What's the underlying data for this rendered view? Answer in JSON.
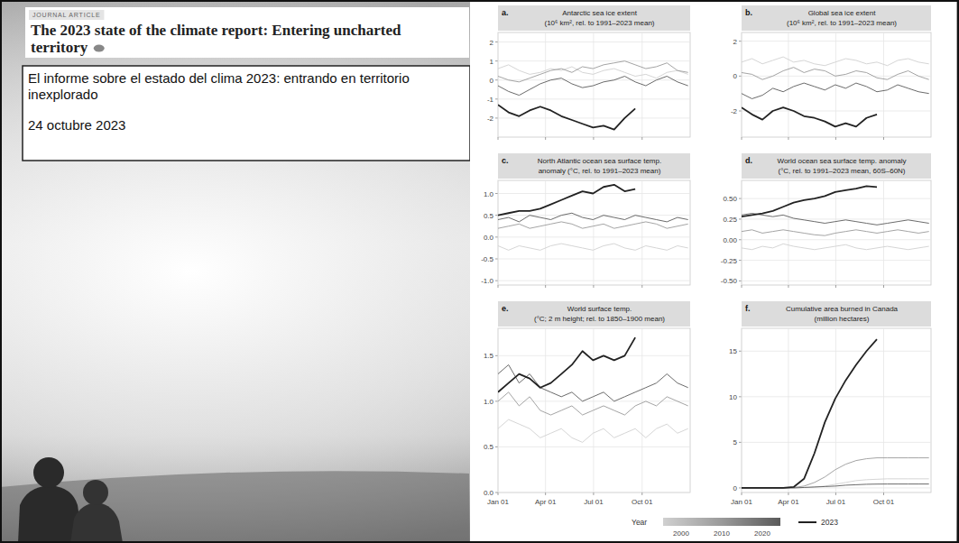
{
  "header": {
    "label": "JOURNAL ARTICLE",
    "title": "The 2023 state of the climate report: Entering uncharted territory"
  },
  "caption": {
    "title": "El informe sobre el estado del clima 2023: entrando en territorio inexplorado",
    "date": "24 octubre 2023"
  },
  "legend": {
    "title": "Year",
    "position": "bottom"
  },
  "chart_data": [
    {
      "type": "line",
      "label": "a.",
      "title": "Antarctic sea ice extent",
      "subtitle": "(10⁶ km², rel. to 1991–2023 mean)",
      "x": [
        1,
        21,
        41,
        61,
        81,
        101,
        121,
        141,
        161,
        181,
        201,
        221,
        241,
        261,
        281,
        301,
        321,
        341,
        361
      ],
      "xlim": [
        1,
        365
      ],
      "xticks": [
        {
          "value": 1,
          "label": "Jan 01"
        },
        {
          "value": 91,
          "label": "Apr 01"
        },
        {
          "value": 182,
          "label": "Jul 01"
        },
        {
          "value": 274,
          "label": "Oct 01"
        }
      ],
      "ylim": [
        -3,
        2.5
      ],
      "yticks": [
        -2,
        -1,
        0,
        1,
        2
      ],
      "grid": true,
      "tick_labels": "y",
      "series": [
        {
          "name": "2000",
          "color": "#d0d0d0",
          "values": [
            0.6,
            0.8,
            0.5,
            0.3,
            0.4,
            0.6,
            0.5,
            0.7,
            0.4,
            0.3,
            0.5,
            0.6,
            0.4,
            0.2,
            0.3,
            0.1,
            0.4,
            0.5,
            0.3
          ]
        },
        {
          "name": "2010",
          "color": "#9a9a9a",
          "values": [
            0.2,
            0.0,
            -0.1,
            0.1,
            0.3,
            0.5,
            0.6,
            0.4,
            0.7,
            0.6,
            0.8,
            0.9,
            1.0,
            0.8,
            0.6,
            0.7,
            0.9,
            0.5,
            0.4
          ]
        },
        {
          "name": "2020",
          "color": "#5a5a5a",
          "values": [
            -0.3,
            -0.6,
            -0.8,
            -0.5,
            -0.2,
            0.0,
            0.1,
            -0.2,
            -0.4,
            -0.3,
            -0.1,
            0.0,
            0.2,
            -0.1,
            -0.3,
            0.0,
            0.2,
            -0.1,
            -0.3
          ]
        },
        {
          "name": "2023",
          "color": "#222222",
          "values": [
            -1.3,
            -1.7,
            -1.9,
            -1.6,
            -1.4,
            -1.6,
            -1.9,
            -2.1,
            -2.3,
            -2.5,
            -2.4,
            -2.6,
            -2.0,
            -1.5,
            null,
            null,
            null,
            null,
            null
          ]
        }
      ]
    },
    {
      "type": "line",
      "label": "b.",
      "title": "Global sea ice extent",
      "subtitle": "(10⁶ km², rel. to 1991–2023 mean)",
      "x": [
        1,
        21,
        41,
        61,
        81,
        101,
        121,
        141,
        161,
        181,
        201,
        221,
        241,
        261,
        281,
        301,
        321,
        341,
        361
      ],
      "xlim": [
        1,
        365
      ],
      "xticks": [
        {
          "value": 1,
          "label": "Jan 01"
        },
        {
          "value": 91,
          "label": "Apr 01"
        },
        {
          "value": 182,
          "label": "Jul 01"
        },
        {
          "value": 274,
          "label": "Oct 01"
        }
      ],
      "ylim": [
        -3.5,
        2.5
      ],
      "yticks": [
        -2,
        0,
        2
      ],
      "grid": true,
      "tick_labels": "y",
      "series": [
        {
          "name": "2000",
          "color": "#d0d0d0",
          "values": [
            0.8,
            1.0,
            0.7,
            0.9,
            1.1,
            0.8,
            0.9,
            0.7,
            0.6,
            0.8,
            1.0,
            0.9,
            0.7,
            0.8,
            0.6,
            0.9,
            1.0,
            0.8,
            0.7
          ]
        },
        {
          "name": "2010",
          "color": "#9a9a9a",
          "values": [
            0.2,
            0.1,
            -0.2,
            0.0,
            0.3,
            0.5,
            0.2,
            0.4,
            0.3,
            0.0,
            0.1,
            0.3,
            0.2,
            -0.1,
            -0.2,
            0.1,
            0.3,
            0.0,
            -0.2
          ]
        },
        {
          "name": "2020",
          "color": "#5a5a5a",
          "values": [
            -1.0,
            -1.3,
            -1.1,
            -0.7,
            -0.9,
            -0.6,
            -0.4,
            -0.6,
            -0.8,
            -0.5,
            -0.7,
            -0.4,
            -0.6,
            -0.9,
            -0.8,
            -0.5,
            -0.7,
            -0.9,
            -1.0
          ]
        },
        {
          "name": "2023",
          "color": "#222222",
          "values": [
            -1.8,
            -2.2,
            -2.5,
            -2.0,
            -1.8,
            -2.0,
            -2.3,
            -2.4,
            -2.6,
            -2.9,
            -2.7,
            -2.9,
            -2.4,
            -2.2,
            null,
            null,
            null,
            null,
            null
          ]
        }
      ]
    },
    {
      "type": "line",
      "label": "c.",
      "title": "North Atlantic ocean sea surface temp.",
      "subtitle": "anomaly (°C, rel. to 1991–2023 mean)",
      "x": [
        1,
        21,
        41,
        61,
        81,
        101,
        121,
        141,
        161,
        181,
        201,
        221,
        241,
        261,
        281,
        301,
        321,
        341,
        361
      ],
      "xlim": [
        1,
        365
      ],
      "xticks": [
        {
          "value": 1,
          "label": "Jan 01"
        },
        {
          "value": 91,
          "label": "Apr 01"
        },
        {
          "value": 182,
          "label": "Jul 01"
        },
        {
          "value": 274,
          "label": "Oct 01"
        }
      ],
      "ylim": [
        -1.1,
        1.3
      ],
      "yticks": [
        {
          "value": -1,
          "label": "-1.0"
        },
        {
          "value": -0.5,
          "label": "-0.5"
        },
        {
          "value": 0,
          "label": "0.0"
        },
        {
          "value": 0.5,
          "label": "0.5"
        },
        {
          "value": 1,
          "label": "1.0"
        }
      ],
      "grid": true,
      "tick_labels": "y",
      "series": [
        {
          "name": "2000",
          "color": "#d0d0d0",
          "values": [
            -0.2,
            -0.3,
            -0.2,
            -0.25,
            -0.3,
            -0.2,
            -0.15,
            -0.2,
            -0.25,
            -0.3,
            -0.2,
            -0.15,
            -0.25,
            -0.3,
            -0.2,
            -0.25,
            -0.3,
            -0.2,
            -0.25
          ]
        },
        {
          "name": "2010",
          "color": "#9a9a9a",
          "values": [
            0.2,
            0.25,
            0.3,
            0.2,
            0.25,
            0.3,
            0.35,
            0.3,
            0.2,
            0.25,
            0.3,
            0.2,
            0.25,
            0.3,
            0.35,
            0.3,
            0.2,
            0.25,
            0.3
          ]
        },
        {
          "name": "2020",
          "color": "#5a5a5a",
          "values": [
            0.4,
            0.45,
            0.35,
            0.5,
            0.45,
            0.4,
            0.5,
            0.55,
            0.45,
            0.4,
            0.5,
            0.45,
            0.4,
            0.5,
            0.45,
            0.4,
            0.35,
            0.45,
            0.4
          ]
        },
        {
          "name": "2023",
          "color": "#222222",
          "values": [
            0.5,
            0.55,
            0.6,
            0.6,
            0.65,
            0.75,
            0.85,
            0.95,
            1.05,
            1.0,
            1.15,
            1.2,
            1.05,
            1.1,
            null,
            null,
            null,
            null,
            null
          ]
        }
      ]
    },
    {
      "type": "line",
      "label": "d.",
      "title": "World ocean sea surface temp. anomaly",
      "subtitle": "(°C, rel. to 1991–2023 mean, 60S–60N)",
      "x": [
        1,
        21,
        41,
        61,
        81,
        101,
        121,
        141,
        161,
        181,
        201,
        221,
        241,
        261,
        281,
        301,
        321,
        341,
        361
      ],
      "xlim": [
        1,
        365
      ],
      "xticks": [
        {
          "value": 1,
          "label": "Jan 01"
        },
        {
          "value": 91,
          "label": "Apr 01"
        },
        {
          "value": 182,
          "label": "Jul 01"
        },
        {
          "value": 274,
          "label": "Oct 01"
        }
      ],
      "ylim": [
        -0.55,
        0.72
      ],
      "yticks": [
        {
          "value": -0.5,
          "label": "-0.50"
        },
        {
          "value": -0.25,
          "label": "-0.25"
        },
        {
          "value": 0,
          "label": "0.00"
        },
        {
          "value": 0.25,
          "label": "0.25"
        },
        {
          "value": 0.5,
          "label": "0.50"
        }
      ],
      "grid": true,
      "tick_labels": "y",
      "series": [
        {
          "name": "2000",
          "color": "#d0d0d0",
          "values": [
            -0.1,
            -0.12,
            -0.08,
            -0.1,
            -0.05,
            -0.08,
            -0.1,
            -0.12,
            -0.1,
            -0.08,
            -0.06,
            -0.1,
            -0.12,
            -0.1,
            -0.08,
            -0.1,
            -0.12,
            -0.1,
            -0.08
          ]
        },
        {
          "name": "2010",
          "color": "#9a9a9a",
          "values": [
            0.1,
            0.12,
            0.08,
            0.1,
            0.12,
            0.1,
            0.08,
            0.06,
            0.05,
            0.08,
            0.1,
            0.12,
            0.1,
            0.08,
            0.1,
            0.12,
            0.1,
            0.08,
            0.1
          ]
        },
        {
          "name": "2020",
          "color": "#5a5a5a",
          "values": [
            0.3,
            0.32,
            0.3,
            0.28,
            0.3,
            0.26,
            0.24,
            0.22,
            0.2,
            0.22,
            0.24,
            0.22,
            0.2,
            0.18,
            0.2,
            0.22,
            0.24,
            0.22,
            0.2
          ]
        },
        {
          "name": "2023",
          "color": "#222222",
          "values": [
            0.28,
            0.3,
            0.32,
            0.35,
            0.4,
            0.45,
            0.48,
            0.5,
            0.53,
            0.58,
            0.6,
            0.62,
            0.65,
            0.64,
            null,
            null,
            null,
            null,
            null
          ]
        }
      ]
    },
    {
      "type": "line",
      "label": "e.",
      "title": "World surface temp.",
      "subtitle": "(°C; 2 m height; rel. to 1850–1900 mean)",
      "x": [
        1,
        21,
        41,
        61,
        81,
        101,
        121,
        141,
        161,
        181,
        201,
        221,
        241,
        261,
        281,
        301,
        321,
        341,
        361
      ],
      "xlim": [
        1,
        365
      ],
      "xticks": [
        {
          "value": 1,
          "label": "Jan 01"
        },
        {
          "value": 91,
          "label": "Apr 01"
        },
        {
          "value": 182,
          "label": "Jul 01"
        },
        {
          "value": 274,
          "label": "Oct 01"
        }
      ],
      "ylim": [
        0,
        1.8
      ],
      "yticks": [
        {
          "value": 0,
          "label": "0.0"
        },
        {
          "value": 0.5,
          "label": "0.5"
        },
        {
          "value": 1,
          "label": "1.0"
        },
        {
          "value": 1.5,
          "label": "1.5"
        }
      ],
      "grid": true,
      "series": [
        {
          "name": "2000",
          "color": "#d0d0d0",
          "values": [
            0.7,
            0.8,
            0.75,
            0.7,
            0.6,
            0.65,
            0.7,
            0.6,
            0.55,
            0.65,
            0.7,
            0.6,
            0.65,
            0.7,
            0.6,
            0.7,
            0.75,
            0.65,
            0.7
          ]
        },
        {
          "name": "2010",
          "color": "#9a9a9a",
          "values": [
            1.0,
            1.1,
            0.95,
            1.05,
            0.9,
            0.85,
            0.9,
            0.95,
            0.85,
            0.9,
            0.95,
            0.9,
            0.85,
            0.95,
            1.0,
            0.95,
            1.05,
            1.0,
            0.95
          ]
        },
        {
          "name": "2020",
          "color": "#5a5a5a",
          "values": [
            1.3,
            1.4,
            1.2,
            1.3,
            1.15,
            1.1,
            1.05,
            1.1,
            1.0,
            1.05,
            1.1,
            1.0,
            1.05,
            1.1,
            1.15,
            1.2,
            1.3,
            1.2,
            1.15
          ]
        },
        {
          "name": "2023",
          "color": "#222222",
          "values": [
            1.1,
            1.2,
            1.3,
            1.25,
            1.15,
            1.2,
            1.3,
            1.4,
            1.55,
            1.45,
            1.5,
            1.45,
            1.5,
            1.7,
            null,
            null,
            null,
            null,
            null
          ]
        }
      ]
    },
    {
      "type": "line",
      "label": "f.",
      "title": "Cumulative area burned in Canada",
      "subtitle": "(million hectares)",
      "x": [
        1,
        21,
        41,
        61,
        81,
        101,
        121,
        141,
        161,
        181,
        201,
        221,
        241,
        261,
        281,
        301,
        321,
        341,
        361
      ],
      "xlim": [
        1,
        365
      ],
      "xticks": [
        {
          "value": 1,
          "label": "Jan 01"
        },
        {
          "value": 91,
          "label": "Apr 01"
        },
        {
          "value": 182,
          "label": "Jul 01"
        },
        {
          "value": 274,
          "label": "Oct 01"
        }
      ],
      "ylim": [
        -0.5,
        17.5
      ],
      "yticks": [
        0,
        5,
        10,
        15
      ],
      "grid": true,
      "series": [
        {
          "name": "2000",
          "color": "#d0d0d0",
          "values": [
            0,
            0,
            0,
            0,
            0,
            0,
            0.05,
            0.1,
            0.2,
            0.4,
            0.6,
            0.8,
            0.9,
            0.95,
            1.0,
            1.0,
            1.0,
            1.0,
            1.0
          ]
        },
        {
          "name": "2010",
          "color": "#9a9a9a",
          "values": [
            0,
            0,
            0,
            0,
            0,
            0.05,
            0.2,
            0.6,
            1.2,
            2.0,
            2.6,
            3.0,
            3.2,
            3.3,
            3.3,
            3.3,
            3.3,
            3.3,
            3.3
          ]
        },
        {
          "name": "2020",
          "color": "#5a5a5a",
          "values": [
            0,
            0,
            0,
            0,
            0,
            0,
            0.05,
            0.1,
            0.15,
            0.2,
            0.3,
            0.35,
            0.4,
            0.42,
            0.43,
            0.43,
            0.43,
            0.43,
            0.43
          ]
        },
        {
          "name": "2023",
          "color": "#222222",
          "values": [
            0,
            0,
            0,
            0,
            0,
            0.1,
            1.0,
            3.8,
            7.2,
            9.8,
            11.8,
            13.5,
            15.0,
            16.3,
            null,
            null,
            null,
            null,
            null
          ]
        }
      ]
    }
  ]
}
